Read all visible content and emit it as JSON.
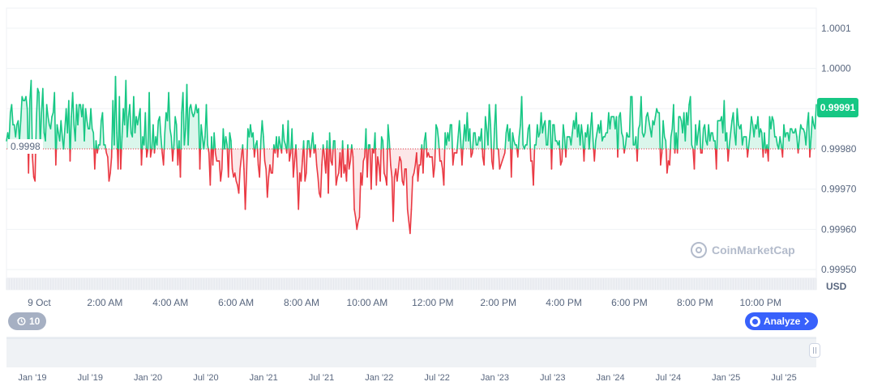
{
  "chart_data": {
    "type": "line",
    "title": "",
    "unit_label": "USD",
    "baseline": 0.9998,
    "baseline_label": "0.9998",
    "current_price_label": "0.99991",
    "ylim": [
      0.99945,
      1.00015
    ],
    "y_ticks": [
      "1.0001",
      "1.0000",
      "0.99990",
      "0.99980",
      "0.99970",
      "0.99960",
      "0.99950"
    ],
    "y_tick_values": [
      1.0001,
      1.0,
      0.9999,
      0.9998,
      0.9997,
      0.9996,
      0.9995
    ],
    "x_ticks": [
      "9 Oct",
      "2:00 AM",
      "4:00 AM",
      "6:00 AM",
      "8:00 AM",
      "10:00 AM",
      "12:00 PM",
      "2:00 PM",
      "4:00 PM",
      "6:00 PM",
      "8:00 PM",
      "10:00 PM"
    ],
    "x_tick_hours": [
      0,
      2,
      4,
      6,
      8,
      10,
      12,
      14,
      16,
      18,
      20,
      22
    ],
    "x_range_hours": [
      -1,
      23.7
    ],
    "up_color": "#16c784",
    "down_color": "#ea3943",
    "grid": true,
    "values": [
      0.99982,
      0.99984,
      0.99982,
      0.99989,
      0.99991,
      0.99986,
      0.99986,
      0.99983,
      0.99986,
      0.99987,
      0.99982,
      0.99987,
      0.99993,
      0.99992,
      0.99992,
      0.99993,
      0.9999,
      0.99974,
      0.99992,
      0.99997,
      0.99978,
      0.99973,
      0.99972,
      0.99987,
      0.99995,
      0.99994,
      0.99981,
      0.99989,
      0.99995,
      0.99984,
      0.99982,
      0.99991,
      0.99988,
      0.99986,
      0.99985,
      0.99988,
      0.99989,
      0.99994,
      0.99976,
      0.99986,
      0.99984,
      0.99982,
      0.99987,
      0.99983,
      0.9998,
      0.99985,
      0.9999,
      0.99984,
      0.99992,
      0.99977,
      0.99988,
      0.99994,
      0.99986,
      0.99982,
      0.99991,
      0.99986,
      0.99991,
      0.99991,
      0.99988,
      0.99991,
      0.99982,
      0.9999,
      0.99987,
      0.99985,
      0.99985,
      0.9999,
      0.99985,
      0.99984,
      0.99975,
      0.99982,
      0.99979,
      0.99981,
      0.99981,
      0.99987,
      0.99989,
      0.99981,
      0.99981,
      0.99979,
      0.99978,
      0.99972,
      0.99974,
      0.99978,
      0.99992,
      0.99981,
      0.99998,
      0.99984,
      0.99975,
      0.99993,
      0.99975,
      0.99983,
      0.9999,
      0.99986,
      0.99997,
      0.99983,
      0.99988,
      0.99991,
      0.99984,
      0.99983,
      0.99993,
      0.99984,
      0.99988,
      0.99986,
      0.99988,
      0.9999,
      0.99976,
      0.99983,
      0.99981,
      0.99989,
      0.99978,
      0.9998,
      0.99994,
      0.99978,
      0.9998,
      0.99986,
      0.99979,
      0.99983,
      0.99981,
      0.99987,
      0.99988,
      0.99983,
      0.99979,
      0.99976,
      0.99984,
      0.99989,
      0.99987,
      0.99994,
      0.99985,
      0.99983,
      0.99977,
      0.99981,
      0.99988,
      0.99986,
      0.99976,
      0.99982,
      0.99973,
      0.99989,
      0.99994,
      0.99981,
      0.99985,
      0.99996,
      0.99981,
      0.9999,
      0.99991,
      0.99989,
      0.99988,
      0.99989,
      0.99991,
      0.99989,
      0.9999,
      0.99975,
      0.99986,
      0.99983,
      0.9998,
      0.99983,
      0.99991,
      0.99981,
      0.99979,
      0.99971,
      0.99983,
      0.99976,
      0.99984,
      0.99979,
      0.99977,
      0.99977,
      0.99977,
      0.99972,
      0.99975,
      0.99985,
      0.9998,
      0.99983,
      0.99981,
      0.99973,
      0.99984,
      0.99982,
      0.99975,
      0.99973,
      0.99974,
      0.99972,
      0.99971,
      0.99969,
      0.99975,
      0.99978,
      0.99981,
      0.99975,
      0.99965,
      0.99974,
      0.99985,
      0.99983,
      0.99986,
      0.99983,
      0.99984,
      0.99978,
      0.99981,
      0.99982,
      0.99976,
      0.99973,
      0.99982,
      0.99987,
      0.99983,
      0.99977,
      0.99975,
      0.99968,
      0.99973,
      0.99976,
      0.99974,
      0.99974,
      0.99981,
      0.99979,
      0.99983,
      0.99978,
      0.99983,
      0.99981,
      0.99979,
      0.99986,
      0.99982,
      0.99981,
      0.99979,
      0.99987,
      0.99977,
      0.99979,
      0.99985,
      0.99973,
      0.99977,
      0.99981,
      0.99974,
      0.99965,
      0.99974,
      0.99972,
      0.99977,
      0.99982,
      0.99972,
      0.99974,
      0.99982,
      0.99982,
      0.99978,
      0.99981,
      0.99984,
      0.99979,
      0.99981,
      0.99976,
      0.99973,
      0.99969,
      0.99968,
      0.99976,
      0.99981,
      0.99978,
      0.99974,
      0.99982,
      0.99969,
      0.99984,
      0.99977,
      0.99976,
      0.99982,
      0.99982,
      0.99971,
      0.99973,
      0.99974,
      0.99979,
      0.99973,
      0.99982,
      0.99974,
      0.99976,
      0.99972,
      0.99981,
      0.99975,
      0.99977,
      0.99981,
      0.99978,
      0.99965,
      0.99963,
      0.9996,
      0.99962,
      0.99963,
      0.99974,
      0.99971,
      0.99977,
      0.99978,
      0.99985,
      0.99973,
      0.99981,
      0.99981,
      0.9997,
      0.9998,
      0.99979,
      0.99984,
      0.99971,
      0.99978,
      0.99976,
      0.99972,
      0.99983,
      0.99982,
      0.99974,
      0.99973,
      0.99971,
      0.99986,
      0.99982,
      0.99976,
      0.99973,
      0.99962,
      0.99973,
      0.99975,
      0.99972,
      0.99975,
      0.99978,
      0.99977,
      0.99972,
      0.99971,
      0.99975,
      0.99975,
      0.99965,
      0.99962,
      0.99959,
      0.99965,
      0.99973,
      0.99974,
      0.99976,
      0.99979,
      0.99972,
      0.99976,
      0.99976,
      0.99981,
      0.99974,
      0.99982,
      0.99984,
      0.99978,
      0.99979,
      0.99978,
      0.99978,
      0.99978,
      0.99973,
      0.99976,
      0.99986,
      0.99985,
      0.99982,
      0.99977,
      0.99977,
      0.99975,
      0.99971,
      0.99984,
      0.99981,
      0.99984,
      0.99982,
      0.99986,
      0.99986,
      0.99976,
      0.99979,
      0.99979,
      0.99979,
      0.99983,
      0.99987,
      0.99982,
      0.99976,
      0.99982,
      0.99986,
      0.99982,
      0.99989,
      0.99982,
      0.99985,
      0.99978,
      0.99979,
      0.99984,
      0.99984,
      0.99981,
      0.99981,
      0.99983,
      0.99982,
      0.99985,
      0.99978,
      0.99976,
      0.99988,
      0.99985,
      0.99981,
      0.99991,
      0.99986,
      0.99977,
      0.99975,
      0.99985,
      0.99991,
      0.9998,
      0.9998,
      0.99975,
      0.99976,
      0.99977,
      0.99978,
      0.99979,
      0.99984,
      0.99986,
      0.99982,
      0.99985,
      0.99973,
      0.99984,
      0.99982,
      0.99981,
      0.99981,
      0.99978,
      0.99983,
      0.99986,
      0.99993,
      0.99981,
      0.9998,
      0.99981,
      0.99981,
      0.99985,
      0.99986,
      0.99977,
      0.99977,
      0.99971,
      0.99981,
      0.99981,
      0.99986,
      0.99983,
      0.99984,
      0.99989,
      0.99984,
      0.99986,
      0.99987,
      0.99981,
      0.99981,
      0.99987,
      0.99987,
      0.99975,
      0.99986,
      0.99986,
      0.99982,
      0.99982,
      0.99981,
      0.99982,
      0.99976,
      0.99977,
      0.99986,
      0.99983,
      0.99978,
      0.99983,
      0.99983,
      0.99983,
      0.99981,
      0.99984,
      0.99987,
      0.99985,
      0.99989,
      0.99983,
      0.99986,
      0.99981,
      0.99986,
      0.99983,
      0.99977,
      0.99984,
      0.99983,
      0.99986,
      0.9998,
      0.99985,
      0.99989,
      0.99982,
      0.99977,
      0.99982,
      0.99984,
      0.99986,
      0.99984,
      0.99987,
      0.99982,
      0.99983,
      0.99983,
      0.99984,
      0.99984,
      0.99989,
      0.99985,
      0.99988,
      0.99988,
      0.99988,
      0.99985,
      0.99988,
      0.99978,
      0.99988,
      0.99989,
      0.99984,
      0.99983,
      0.99979,
      0.99981,
      0.99984,
      0.99983,
      0.99983,
      0.99993,
      0.99993,
      0.99981,
      0.99981,
      0.99983,
      0.99977,
      0.99985,
      0.99986,
      0.99993,
      0.99984,
      0.99983,
      0.99984,
      0.99988,
      0.99989,
      0.99987,
      0.99985,
      0.99983,
      0.99987,
      0.99986,
      0.99988,
      0.9999,
      0.99989,
      0.99989,
      0.99976,
      0.99979,
      0.99987,
      0.99983,
      0.99982,
      0.99974,
      0.99977,
      0.99976,
      0.99983,
      0.99985,
      0.99991,
      0.99979,
      0.99984,
      0.99979,
      0.99988,
      0.99988,
      0.99987,
      0.99984,
      0.99989,
      0.99982,
      0.99989,
      0.99986,
      0.99991,
      0.99993,
      0.99981,
      0.9998,
      0.99975,
      0.99986,
      0.99981,
      0.99984,
      0.99987,
      0.99979,
      0.99979,
      0.99985,
      0.99986,
      0.99982,
      0.99981,
      0.99986,
      0.99982,
      0.99984,
      0.99984,
      0.99982,
      0.99982,
      0.99975,
      0.99987,
      0.99987,
      0.99987,
      0.99988,
      0.99984,
      0.99992,
      0.99982,
      0.99984,
      0.99977,
      0.99981,
      0.99984,
      0.99987,
      0.99989,
      0.99984,
      0.99981,
      0.9999,
      0.99986,
      0.99985,
      0.99986,
      0.99981,
      0.99983,
      0.99983,
      0.99983,
      0.99978,
      0.99981,
      0.99984,
      0.99988,
      0.99986,
      0.99983,
      0.99986,
      0.99985,
      0.99988,
      0.99983,
      0.99985,
      0.99984,
      0.99978,
      0.99984,
      0.99979,
      0.99981,
      0.99977,
      0.99988,
      0.99985,
      0.99988,
      0.99987,
      0.99983,
      0.99983,
      0.99981,
      0.9998,
      0.99983,
      0.99981,
      0.99978,
      0.99986,
      0.99983,
      0.99984,
      0.99984,
      0.99982,
      0.99985,
      0.99985,
      0.99984,
      0.99984,
      0.99985,
      0.99983,
      0.99979,
      0.99983,
      0.99986,
      0.99985,
      0.99985,
      0.99984,
      0.99981,
      0.99986,
      0.99989,
      0.99978,
      0.99983,
      0.99988,
      0.99986,
      0.99985,
      0.99991
    ],
    "navigator": {
      "x_ticks": [
        "Jan '19",
        "Jul '19",
        "Jan '20",
        "Jul '20",
        "Jan '21",
        "Jul '21",
        "Jan '22",
        "Jul '22",
        "Jan '23",
        "Jul '23",
        "Jan '24",
        "Jul '24",
        "Jan '25",
        "Jul '25"
      ]
    }
  },
  "controls": {
    "history_badge_label": "10",
    "history_icon": "history-icon",
    "analyze_label": "Analyze",
    "analyze_icon": "coinmarketcap-logo-icon",
    "chevron_icon": "chevron-right-icon"
  },
  "watermark": {
    "text": "CoinMarketCap",
    "icon": "coinmarketcap-logo-icon"
  }
}
